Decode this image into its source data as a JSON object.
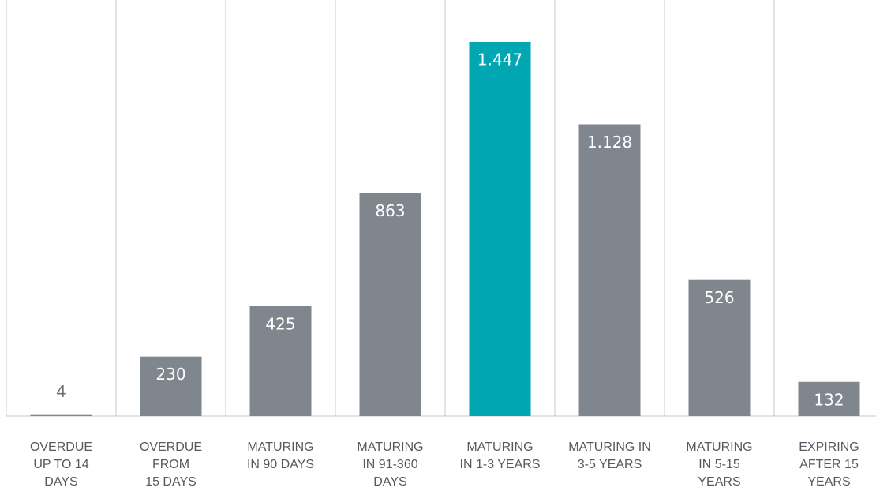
{
  "chart_data": {
    "type": "bar",
    "categories": [
      "OVERDUE\nUP TO 14\nDAYS",
      "OVERDUE\nFROM\n15 DAYS",
      "MATURING\nIN 90 DAYS",
      "MATURING\nIN 91-360\nDAYS",
      "MATURING\nIN 1-3 YEARS",
      "MATURING IN\n3-5 YEARS",
      "MATURING\nIN 5-15\nYEARS",
      "EXPIRING\nAFTER 15\nYEARS"
    ],
    "values": [
      4,
      230,
      425,
      863,
      1447,
      1128,
      526,
      132
    ],
    "value_labels": [
      "4",
      "230",
      "425",
      "863",
      "1.447",
      "1.128",
      "526",
      "132"
    ],
    "colors": [
      "#7f868e",
      "#7f868e",
      "#7f868e",
      "#7f868e",
      "#00a6b2",
      "#7f868e",
      "#7f868e",
      "#7f868e"
    ]
  }
}
